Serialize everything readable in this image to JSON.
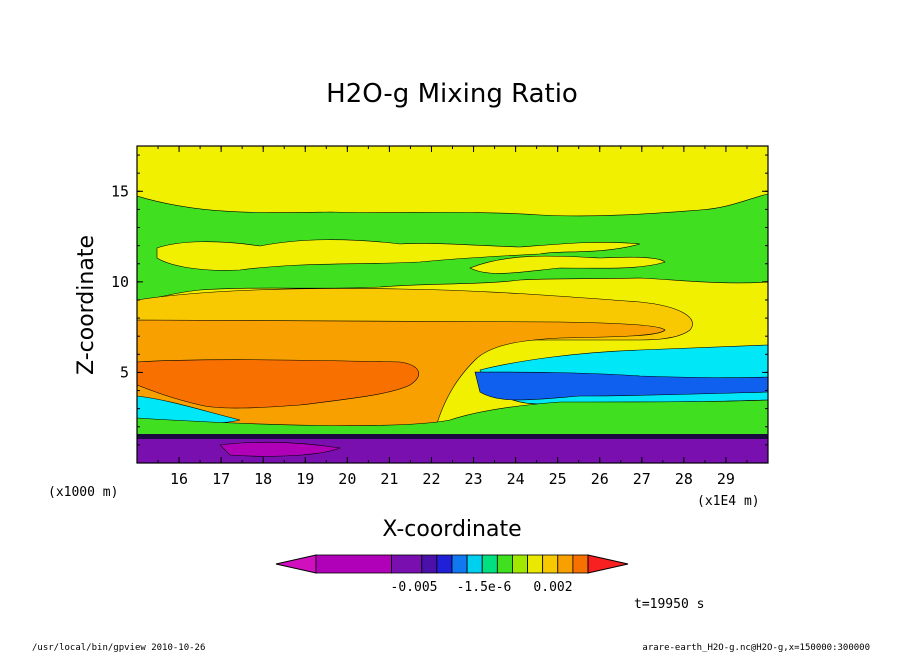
{
  "chart_data": {
    "type": "heatmap",
    "title": "H2O-g Mixing Ratio",
    "xlabel": "X-coordinate",
    "ylabel": "Z-coordinate",
    "x_unit_left": "(x1000 m)",
    "x_unit_right": "(x1E4 m)",
    "x_ticks": [
      16,
      17,
      18,
      19,
      20,
      21,
      22,
      23,
      24,
      25,
      26,
      27,
      28,
      29
    ],
    "y_ticks": [
      5,
      10,
      15
    ],
    "xlim": [
      15,
      30
    ],
    "ylim": [
      0,
      17.5
    ],
    "colorbar": {
      "labels": [
        "-0.005",
        "-1.5e-6",
        "0.002"
      ],
      "colors": [
        "#d00fbf",
        "#b000b8",
        "#7a0fb0",
        "#4a10a8",
        "#2020d8",
        "#1078f0",
        "#00d0f0",
        "#00e080",
        "#40e020",
        "#a0e800",
        "#e8e800",
        "#f8c800",
        "#f8a000",
        "#f87000",
        "#f82020"
      ]
    },
    "time_label": "t=19950 s"
  },
  "footer": {
    "left": "/usr/local/bin/gpview  2010-10-26",
    "right": "arare-earth_H2O-g.nc@H2O-g,x=150000:300000"
  }
}
